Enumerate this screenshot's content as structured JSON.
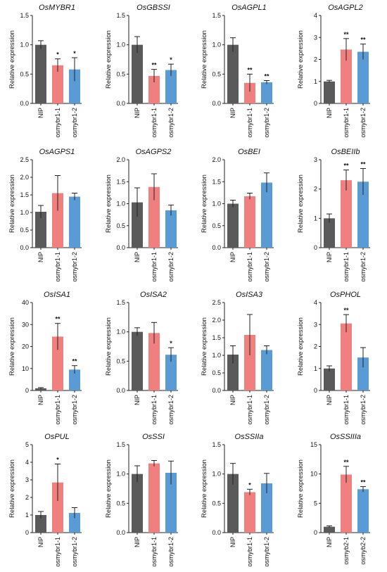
{
  "figure": {
    "colors": {
      "NIP": "#5a5a5a",
      "mutant1": "#f07f7f",
      "mutant2": "#5b9bd5",
      "axis": "#222222"
    }
  },
  "chart_data": [
    {
      "type": "bar",
      "title": "OsMYBR1",
      "ylabel": "Relative expression",
      "ylim": [
        0,
        1.5
      ],
      "yticks": [
        "0.0",
        "0.5",
        "1.0",
        "1.5"
      ],
      "categories": [
        "NIP",
        "osmybr1-1",
        "osmybr1-2"
      ],
      "values": [
        1.0,
        0.65,
        0.58
      ],
      "errors": [
        0.07,
        0.11,
        0.2
      ],
      "significance": [
        "",
        "*",
        "*"
      ]
    },
    {
      "type": "bar",
      "title": "OsGBSSI",
      "ylabel": "Relative expression",
      "ylim": [
        0,
        1.5
      ],
      "yticks": [
        "0.0",
        "0.5",
        "1.0",
        "1.5"
      ],
      "categories": [
        "NIP",
        "osmybr1-1",
        "osmybr1-2"
      ],
      "values": [
        1.0,
        0.47,
        0.57
      ],
      "errors": [
        0.14,
        0.11,
        0.1
      ],
      "significance": [
        "",
        "**",
        "*"
      ]
    },
    {
      "type": "bar",
      "title": "OsAGPL1",
      "ylabel": "Relative expression",
      "ylim": [
        0,
        1.5
      ],
      "yticks": [
        "0.0",
        "0.5",
        "1.0",
        "1.5"
      ],
      "categories": [
        "NIP",
        "osmybr1-1",
        "osmybr1-2"
      ],
      "values": [
        1.0,
        0.35,
        0.36
      ],
      "errors": [
        0.12,
        0.15,
        0.03
      ],
      "significance": [
        "",
        "**",
        "**"
      ]
    },
    {
      "type": "bar",
      "title": "OsAGPL2",
      "ylabel": "Relative expression",
      "ylim": [
        0,
        4
      ],
      "yticks": [
        "0",
        "1",
        "2",
        "3",
        "4"
      ],
      "categories": [
        "NIP",
        "osmybr1-1",
        "osmybr1-2"
      ],
      "values": [
        1.0,
        2.45,
        2.35
      ],
      "errors": [
        0.05,
        0.5,
        0.35
      ],
      "significance": [
        "",
        "**",
        "**"
      ]
    },
    {
      "type": "bar",
      "title": "OsAGPS1",
      "ylabel": "Relative expression",
      "ylim": [
        0,
        2.5
      ],
      "yticks": [
        "0.0",
        "0.5",
        "1.0",
        "1.5",
        "2.0",
        "2.5"
      ],
      "categories": [
        "NIP",
        "osmybr1-1",
        "osmybr1-2"
      ],
      "values": [
        1.02,
        1.55,
        1.45
      ],
      "errors": [
        0.18,
        0.5,
        0.1
      ],
      "significance": [
        "",
        "",
        ""
      ]
    },
    {
      "type": "bar",
      "title": "OsAGPS2",
      "ylabel": "Relative expression",
      "ylim": [
        0,
        2.0
      ],
      "yticks": [
        "0.0",
        "0.5",
        "1.0",
        "1.5",
        "2.0"
      ],
      "categories": [
        "NIP",
        "osmybr1-1",
        "osmybr1-2"
      ],
      "values": [
        1.03,
        1.38,
        0.85
      ],
      "errors": [
        0.33,
        0.3,
        0.12
      ],
      "significance": [
        "",
        "",
        ""
      ]
    },
    {
      "type": "bar",
      "title": "OsBEI",
      "ylabel": "Relative expression",
      "ylim": [
        0,
        2.0
      ],
      "yticks": [
        "0.0",
        "0.5",
        "1.0",
        "1.5",
        "2.0"
      ],
      "categories": [
        "NIP",
        "osmybr1-1",
        "osmybr1-2"
      ],
      "values": [
        1.0,
        1.17,
        1.48
      ],
      "errors": [
        0.08,
        0.07,
        0.22
      ],
      "significance": [
        "",
        "",
        ""
      ]
    },
    {
      "type": "bar",
      "title": "OsBEIIb",
      "ylabel": "Relative expression",
      "ylim": [
        0,
        3
      ],
      "yticks": [
        "0",
        "1",
        "2",
        "3"
      ],
      "categories": [
        "NIP",
        "osmybr1-1",
        "osmybr1-2"
      ],
      "values": [
        1.0,
        2.3,
        2.25
      ],
      "errors": [
        0.15,
        0.35,
        0.45
      ],
      "significance": [
        "",
        "**",
        "**"
      ]
    },
    {
      "type": "bar",
      "title": "OsISA1",
      "ylabel": "Relative expression",
      "ylim": [
        0,
        40
      ],
      "yticks": [
        "0",
        "10",
        "20",
        "30",
        "40"
      ],
      "categories": [
        "NIP",
        "osmybr1-1",
        "osmybr1-2"
      ],
      "values": [
        1.0,
        24.5,
        9.5
      ],
      "errors": [
        0.3,
        6.0,
        1.8
      ],
      "significance": [
        "",
        "**",
        "**"
      ]
    },
    {
      "type": "bar",
      "title": "OsISA2",
      "ylabel": "Relative expression",
      "ylim": [
        0,
        1.5
      ],
      "yticks": [
        "0.0",
        "0.5",
        "1.0",
        "1.5"
      ],
      "categories": [
        "NIP",
        "osmybr1-1",
        "osmybr1-2"
      ],
      "values": [
        1.0,
        0.98,
        0.61
      ],
      "errors": [
        0.07,
        0.18,
        0.12
      ],
      "significance": [
        "",
        "",
        "*"
      ]
    },
    {
      "type": "bar",
      "title": "OsISA3",
      "ylabel": "Relative expression",
      "ylim": [
        0,
        2.5
      ],
      "yticks": [
        "0.0",
        "0.5",
        "1.0",
        "1.5",
        "2.0",
        "2.5"
      ],
      "categories": [
        "NIP",
        "osmybr1-1",
        "osmybr1-2"
      ],
      "values": [
        1.02,
        1.58,
        1.15
      ],
      "errors": [
        0.25,
        0.58,
        0.12
      ],
      "significance": [
        "",
        "",
        ""
      ]
    },
    {
      "type": "bar",
      "title": "OsPHOL",
      "ylabel": "Relative expression",
      "ylim": [
        0,
        4
      ],
      "yticks": [
        "0",
        "1",
        "2",
        "3",
        "4"
      ],
      "categories": [
        "NIP",
        "osmybr1-1",
        "osmybr1-2"
      ],
      "values": [
        1.0,
        3.05,
        1.5
      ],
      "errors": [
        0.12,
        0.4,
        0.45
      ],
      "significance": [
        "",
        "**",
        ""
      ]
    },
    {
      "type": "bar",
      "title": "OsPUL",
      "ylabel": "Relative expression",
      "ylim": [
        0,
        5
      ],
      "yticks": [
        "0",
        "1",
        "2",
        "3",
        "4",
        "5"
      ],
      "categories": [
        "NIP",
        "osmybr1-1",
        "osmybr1-2"
      ],
      "values": [
        1.0,
        2.85,
        1.12
      ],
      "errors": [
        0.2,
        1.05,
        0.3
      ],
      "significance": [
        "",
        "*",
        ""
      ]
    },
    {
      "type": "bar",
      "title": "OsSSI",
      "ylabel": "Relative expression",
      "ylim": [
        0,
        1.5
      ],
      "yticks": [
        "0.0",
        "0.5",
        "1.0",
        "1.5"
      ],
      "categories": [
        "NIP",
        "osmybr1-1",
        "osmybr1-2"
      ],
      "values": [
        1.0,
        1.18,
        1.02
      ],
      "errors": [
        0.14,
        0.05,
        0.2
      ],
      "significance": [
        "",
        "",
        ""
      ]
    },
    {
      "type": "bar",
      "title": "OsSSIIa",
      "ylabel": "Relative expression",
      "ylim": [
        0,
        1.5
      ],
      "yticks": [
        "0.0",
        "0.5",
        "1.0",
        "1.5"
      ],
      "categories": [
        "NIP",
        "osmybr1-1",
        "osmybr1-2"
      ],
      "values": [
        1.0,
        0.69,
        0.84
      ],
      "errors": [
        0.18,
        0.05,
        0.17
      ],
      "significance": [
        "",
        "*",
        ""
      ]
    },
    {
      "type": "bar",
      "title": "OsSSIIIa",
      "ylabel": "Relative expression",
      "ylim": [
        0,
        15
      ],
      "yticks": [
        "0",
        "5",
        "10",
        "15"
      ],
      "categories": [
        "NIP",
        "osmyb2-1",
        "osmyb2-2"
      ],
      "values": [
        1.0,
        9.9,
        7.4
      ],
      "errors": [
        0.15,
        1.4,
        0.45
      ],
      "significance": [
        "",
        "**",
        "**"
      ]
    }
  ]
}
